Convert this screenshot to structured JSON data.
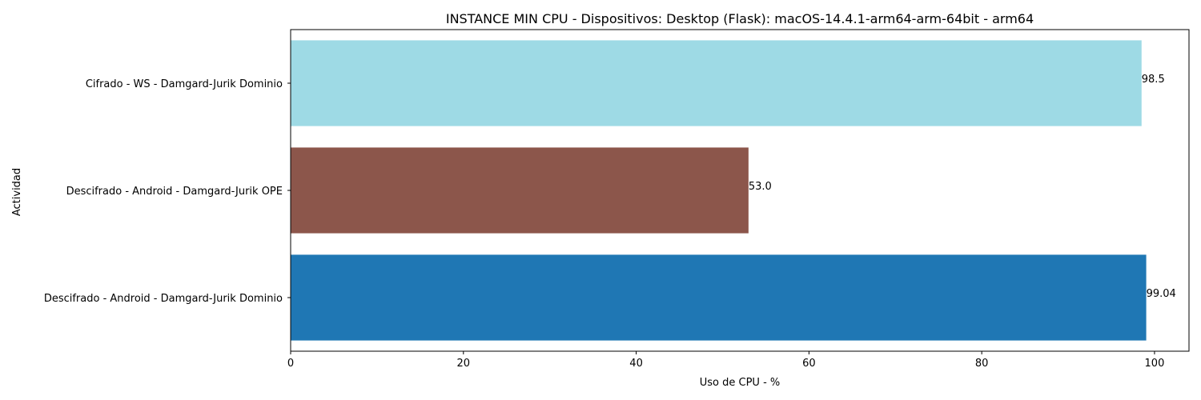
{
  "chart_data": {
    "type": "bar",
    "orientation": "horizontal",
    "title": "INSTANCE MIN CPU - Dispositivos: Desktop (Flask): macOS-14.4.1-arm64-arm-64bit - arm64",
    "xlabel": "Uso de CPU - %",
    "ylabel": "Actividad",
    "xlim": [
      0,
      103.99
    ],
    "xticks": [
      0,
      20,
      40,
      60,
      80,
      100
    ],
    "grid": false,
    "legend": "none",
    "categories": [
      "Cifrado - WS - Damgard-Jurik Dominio",
      "Descifrado - Android - Damgard-Jurik OPE",
      "Descifrado - Android - Damgard-Jurik Dominio"
    ],
    "values": [
      98.5,
      53.0,
      99.04
    ],
    "value_labels": [
      "98.5",
      "53.0",
      "99.04"
    ],
    "colors": [
      "#9edae5",
      "#8c564b",
      "#1f77b4"
    ]
  }
}
